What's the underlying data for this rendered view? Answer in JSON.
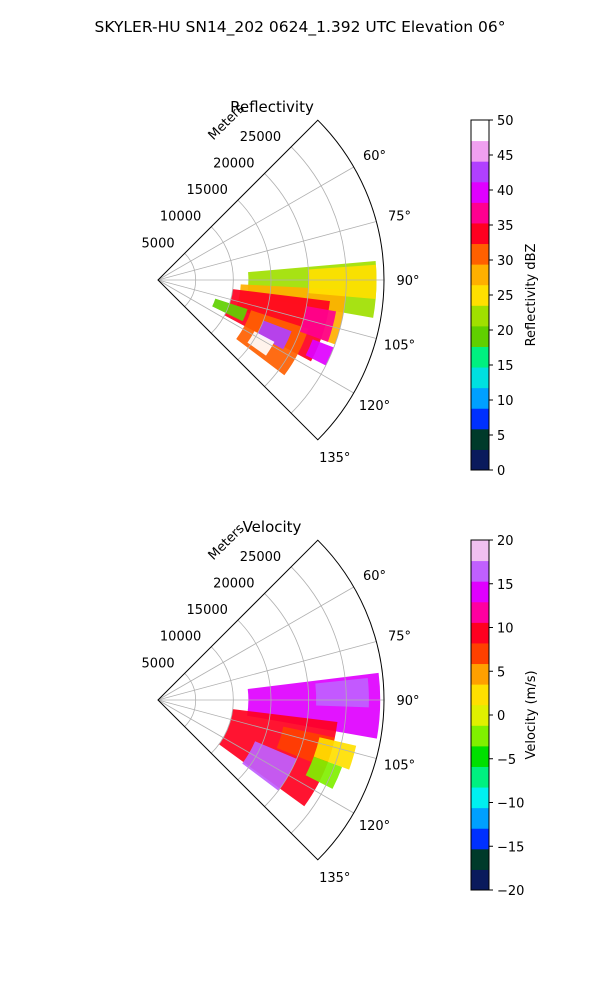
{
  "figure": {
    "title": "SKYLER-HU  SN14_202  0624_1.392 UTC Elevation 06°"
  },
  "chart_data": [
    {
      "type": "heatmap",
      "title": "Reflectivity",
      "range_axis_label": "Meters",
      "range_ticks": [
        5000,
        10000,
        15000,
        20000,
        25000
      ],
      "range_ticks_text": [
        "5000",
        "10000",
        "15000",
        "20000",
        "25000"
      ],
      "rlim": [
        0,
        30000
      ],
      "azimuth_ticks_deg": [
        60,
        75,
        90,
        105,
        120,
        135
      ],
      "azimuth_ticks_text": [
        "60°",
        "75°",
        "90°",
        "105°",
        "120°",
        "135°"
      ],
      "azimuth_range_deg": [
        45,
        135
      ],
      "grid": true,
      "colorbar": {
        "label": "Reflectivity dBZ",
        "vmin": 0,
        "vmax": 50,
        "ticks": [
          0,
          5,
          10,
          15,
          20,
          25,
          30,
          35,
          40,
          45,
          50
        ],
        "ticks_text": [
          "0",
          "5",
          "10",
          "15",
          "20",
          "25",
          "30",
          "35",
          "40",
          "45",
          "50"
        ],
        "colors": [
          "#0a1a5c",
          "#003a2a",
          "#0030ff",
          "#00a0ff",
          "#00e0e0",
          "#00f080",
          "#60d000",
          "#a0e000",
          "#ffe000",
          "#ffb000",
          "#ff6000",
          "#ff0020",
          "#ff0090",
          "#e000ff",
          "#b040ff",
          "#f0a0f0",
          "#ffffff"
        ]
      },
      "echo_regions": [
        {
          "az": [
            85,
            100
          ],
          "r": [
            12000,
            29000
          ],
          "value": 21
        },
        {
          "az": [
            93,
            110
          ],
          "r": [
            11000,
            25000
          ],
          "value": 28
        },
        {
          "az": [
            97,
            118
          ],
          "r": [
            10000,
            23000
          ],
          "value": 33
        },
        {
          "az": [
            108,
            127
          ],
          "r": [
            13000,
            21000
          ],
          "value": 31
        },
        {
          "az": [
            111,
            119
          ],
          "r": [
            15000,
            19000
          ],
          "value": 42
        },
        {
          "az": [
            118,
            125
          ],
          "r": [
            14500,
            17500
          ],
          "value": 48
        },
        {
          "az": [
            100,
            110
          ],
          "r": [
            20000,
            24000
          ],
          "value": 36
        },
        {
          "az": [
            86,
            95
          ],
          "r": [
            20000,
            29000
          ],
          "value": 26
        },
        {
          "az": [
            108,
            116
          ],
          "r": [
            8000,
            12500
          ],
          "value": 20
        },
        {
          "az": [
            111,
            117
          ],
          "r": [
            22000,
            25000
          ],
          "value": 40
        }
      ]
    },
    {
      "type": "heatmap",
      "title": "Velocity",
      "range_axis_label": "Meters",
      "range_ticks": [
        5000,
        10000,
        15000,
        20000,
        25000
      ],
      "range_ticks_text": [
        "5000",
        "10000",
        "15000",
        "20000",
        "25000"
      ],
      "rlim": [
        0,
        30000
      ],
      "azimuth_ticks_deg": [
        60,
        75,
        90,
        105,
        120,
        135
      ],
      "azimuth_ticks_text": [
        "60°",
        "75°",
        "90°",
        "105°",
        "120°",
        "135°"
      ],
      "azimuth_range_deg": [
        45,
        135
      ],
      "grid": true,
      "colorbar": {
        "label": "Velocity (m/s)",
        "vmin": -20,
        "vmax": 20,
        "ticks": [
          -20,
          -15,
          -10,
          -5,
          0,
          5,
          10,
          15,
          20
        ],
        "ticks_text": [
          "−20",
          "−15",
          "−10",
          "−5",
          "0",
          "5",
          "10",
          "15",
          "20"
        ],
        "colors": [
          "#0a1a5c",
          "#003a2a",
          "#0030ff",
          "#00a0ff",
          "#00f0f0",
          "#00f080",
          "#00e000",
          "#80f000",
          "#e0f000",
          "#ffe000",
          "#ffa000",
          "#ff4000",
          "#ff0020",
          "#ff00a0",
          "#e000ff",
          "#c060ff",
          "#f0c0f0"
        ]
      },
      "echo_regions": [
        {
          "az": [
            83,
            100
          ],
          "r": [
            12000,
            29500
          ],
          "value": 15
        },
        {
          "az": [
            97,
            126
          ],
          "r": [
            10000,
            24000
          ],
          "value": 10
        },
        {
          "az": [
            102,
            112
          ],
          "r": [
            17000,
            24000
          ],
          "value": 8
        },
        {
          "az": [
            113,
            127
          ],
          "r": [
            14000,
            20000
          ],
          "value": 16
        },
        {
          "az": [
            103,
            110
          ],
          "r": [
            22000,
            27000
          ],
          "value": 3
        },
        {
          "az": [
            110,
            117
          ],
          "r": [
            22000,
            26000
          ],
          "value": -3
        },
        {
          "az": [
            84,
            92
          ],
          "r": [
            21000,
            28000
          ],
          "value": 17
        }
      ]
    }
  ]
}
